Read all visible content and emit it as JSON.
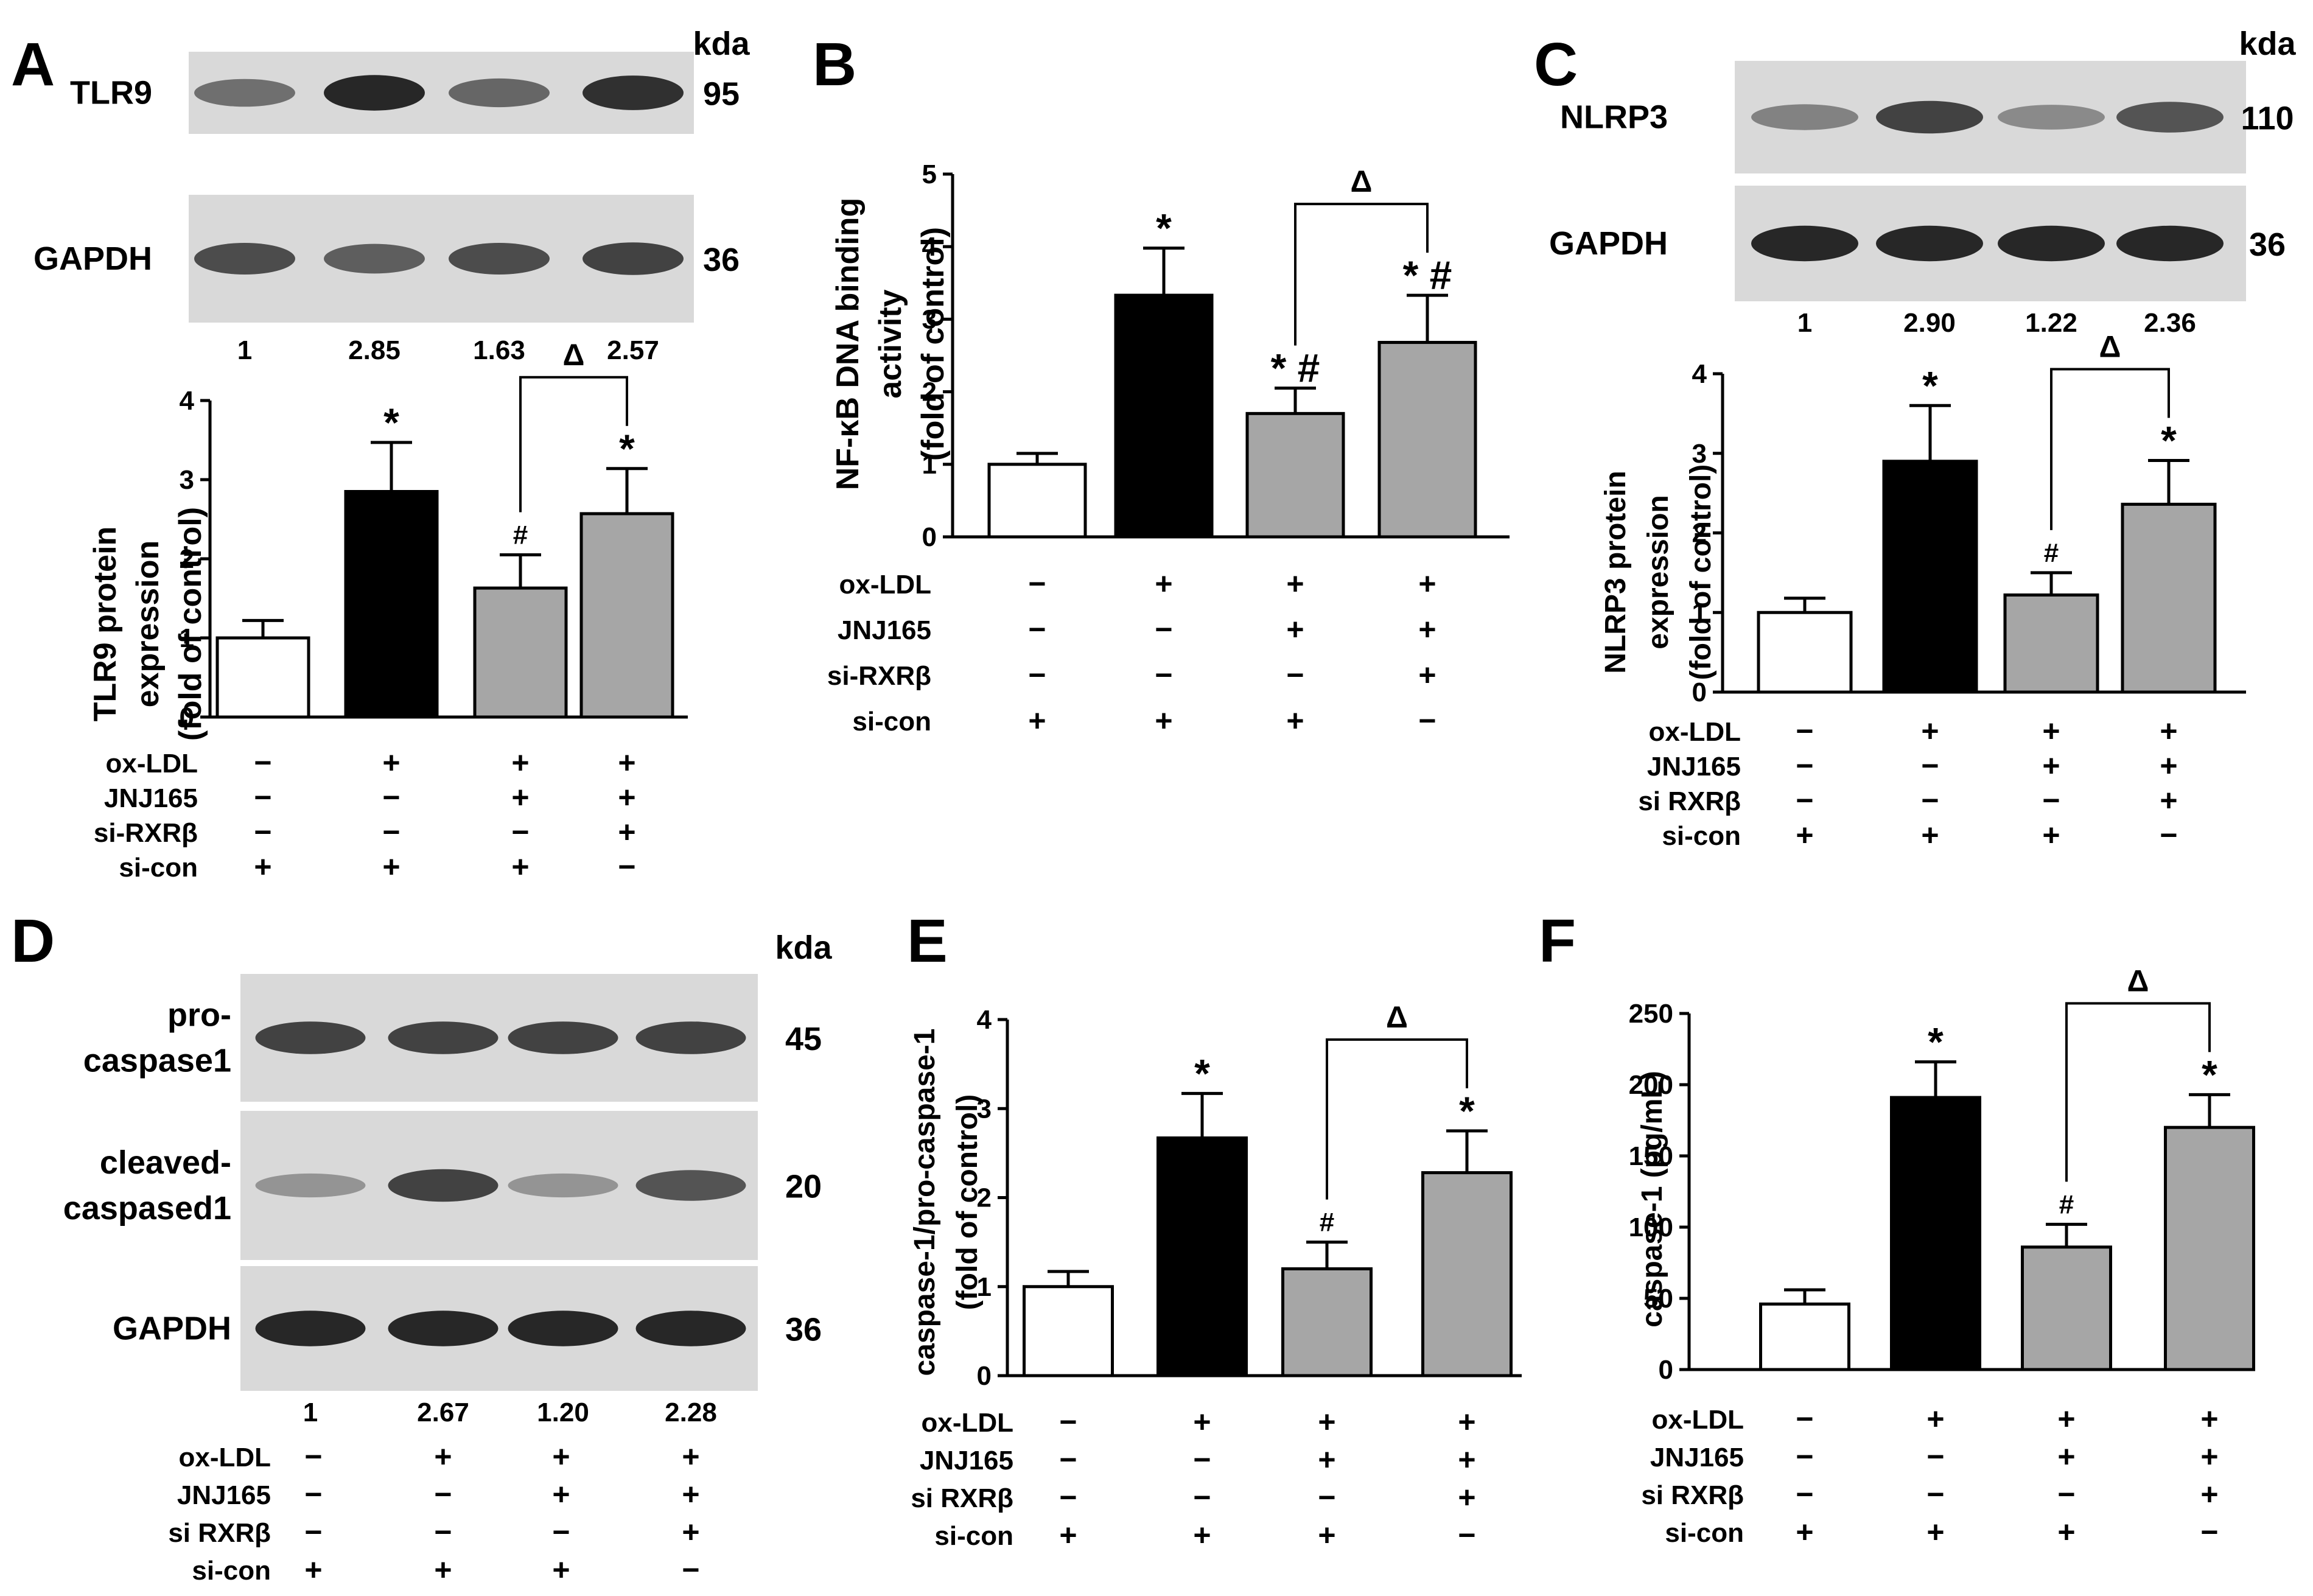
{
  "panels": [
    {
      "letter": "A",
      "kda_label": "kda",
      "blots": [
        {
          "label_lines": [
            "TLR9"
          ],
          "kda": "95",
          "intensities": [
            0.55,
            0.95,
            0.6,
            0.9
          ]
        },
        {
          "label_lines": [
            "GAPDH"
          ],
          "kda": "36",
          "intensities": [
            0.75,
            0.65,
            0.75,
            0.8
          ]
        }
      ],
      "densitometry": [
        "1",
        "2.85",
        "1.63",
        "2.57"
      ]
    },
    {
      "letter": "B"
    },
    {
      "letter": "C",
      "kda_label": "kda",
      "blots": [
        {
          "label_lines": [
            "NLRP3"
          ],
          "kda": "110",
          "intensities": [
            0.45,
            0.8,
            0.4,
            0.7
          ]
        },
        {
          "label_lines": [
            "GAPDH"
          ],
          "kda": "36",
          "intensities": [
            0.95,
            0.95,
            0.95,
            0.95
          ]
        }
      ],
      "densitometry": [
        "1",
        "2.90",
        "1.22",
        "2.36"
      ]
    },
    {
      "letter": "D",
      "kda_label": "kda",
      "blots": [
        {
          "label_lines": [
            "pro-",
            "caspase1"
          ],
          "kda": "45",
          "intensities": [
            0.8,
            0.8,
            0.8,
            0.8
          ]
        },
        {
          "label_lines": [
            "cleaved-",
            "caspased1"
          ],
          "kda": "20",
          "intensities": [
            0.35,
            0.8,
            0.35,
            0.7
          ]
        },
        {
          "label_lines": [
            "GAPDH"
          ],
          "kda": "36",
          "intensities": [
            0.95,
            0.95,
            0.95,
            0.95
          ]
        }
      ],
      "densitometry": [
        "1",
        "2.67",
        "1.20",
        "2.28"
      ]
    },
    {
      "letter": "E"
    },
    {
      "letter": "F"
    }
  ],
  "chart_data": [
    {
      "panel": "A",
      "type": "bar",
      "ylabel_lines": [
        "TLR9 protein",
        "expression",
        "(fold of control)"
      ],
      "ylim": [
        0,
        4
      ],
      "yticks": [
        "0",
        "1",
        "2",
        "3",
        "4"
      ],
      "values": [
        1.0,
        2.85,
        1.63,
        2.57
      ],
      "errors": [
        0.22,
        0.62,
        0.42,
        0.57
      ],
      "colors": [
        "#ffffff",
        "#000000",
        "#a6a6a6",
        "#a6a6a6"
      ],
      "annotations": [
        "",
        "*",
        "#",
        "*"
      ],
      "bracket": {
        "from": 2,
        "to": 3,
        "symbol": "Δ"
      },
      "conditions": [
        {
          "label": "ox-LDL",
          "signs": [
            "−",
            "+",
            "+",
            "+"
          ]
        },
        {
          "label": "JNJ165",
          "signs": [
            "−",
            "−",
            "+",
            "+"
          ]
        },
        {
          "label": "si-RXRβ",
          "signs": [
            "−",
            "−",
            "−",
            "+"
          ]
        },
        {
          "label": "si-con",
          "signs": [
            "+",
            "+",
            "+",
            "−"
          ]
        }
      ]
    },
    {
      "panel": "B",
      "type": "bar",
      "ylabel_lines": [
        "NF-κB DNA binding",
        "activity",
        "(fold of control)"
      ],
      "ylim": [
        0,
        5
      ],
      "yticks": [
        "0",
        "1",
        "2",
        "3",
        "4",
        "5"
      ],
      "values": [
        1.0,
        3.33,
        1.7,
        2.68
      ],
      "errors": [
        0.15,
        0.65,
        0.35,
        0.65
      ],
      "colors": [
        "#ffffff",
        "#000000",
        "#a6a6a6",
        "#a6a6a6"
      ],
      "annotations": [
        "",
        "*",
        "* #",
        "* #"
      ],
      "bracket": {
        "from": 2,
        "to": 3,
        "symbol": "Δ"
      },
      "conditions": [
        {
          "label": "ox-LDL",
          "signs": [
            "−",
            "+",
            "+",
            "+"
          ]
        },
        {
          "label": "JNJ165",
          "signs": [
            "−",
            "−",
            "+",
            "+"
          ]
        },
        {
          "label": "si-RXRβ",
          "signs": [
            "−",
            "−",
            "−",
            "+"
          ]
        },
        {
          "label": "si-con",
          "signs": [
            "+",
            "+",
            "+",
            "−"
          ]
        }
      ]
    },
    {
      "panel": "C",
      "type": "bar",
      "ylabel_lines": [
        "NLRP3 protein",
        "expression",
        "(fold of control)"
      ],
      "ylim": [
        0,
        4
      ],
      "yticks": [
        "0",
        "1",
        "2",
        "3",
        "4"
      ],
      "values": [
        1.0,
        2.9,
        1.22,
        2.36
      ],
      "errors": [
        0.18,
        0.7,
        0.28,
        0.55
      ],
      "colors": [
        "#ffffff",
        "#000000",
        "#a6a6a6",
        "#a6a6a6"
      ],
      "annotations": [
        "",
        "*",
        "#",
        "*"
      ],
      "bracket": {
        "from": 2,
        "to": 3,
        "symbol": "Δ"
      },
      "conditions": [
        {
          "label": "ox-LDL",
          "signs": [
            "−",
            "+",
            "+",
            "+"
          ]
        },
        {
          "label": "JNJ165",
          "signs": [
            "−",
            "−",
            "+",
            "+"
          ]
        },
        {
          "label": "si RXRβ",
          "signs": [
            "−",
            "−",
            "−",
            "+"
          ]
        },
        {
          "label": "si-con",
          "signs": [
            "+",
            "+",
            "+",
            "−"
          ]
        }
      ]
    },
    {
      "panel": "D",
      "type": "table",
      "conditions": [
        {
          "label": "ox-LDL",
          "signs": [
            "−",
            "+",
            "+",
            "+"
          ]
        },
        {
          "label": "JNJ165",
          "signs": [
            "−",
            "−",
            "+",
            "+"
          ]
        },
        {
          "label": "si RXRβ",
          "signs": [
            "−",
            "−",
            "−",
            "+"
          ]
        },
        {
          "label": "si-con",
          "signs": [
            "+",
            "+",
            "+",
            "−"
          ]
        }
      ]
    },
    {
      "panel": "E",
      "type": "bar",
      "ylabel_lines": [
        "caspase-1/pro-caspase-1",
        "(fold of control)"
      ],
      "ylim": [
        0,
        4
      ],
      "yticks": [
        "0",
        "1",
        "2",
        "3",
        "4"
      ],
      "values": [
        1.0,
        2.67,
        1.2,
        2.28
      ],
      "errors": [
        0.17,
        0.5,
        0.3,
        0.47
      ],
      "colors": [
        "#ffffff",
        "#000000",
        "#a6a6a6",
        "#a6a6a6"
      ],
      "annotations": [
        "",
        "*",
        "#",
        "*"
      ],
      "bracket": {
        "from": 2,
        "to": 3,
        "symbol": "Δ"
      },
      "conditions": [
        {
          "label": "ox-LDL",
          "signs": [
            "−",
            "+",
            "+",
            "+"
          ]
        },
        {
          "label": "JNJ165",
          "signs": [
            "−",
            "−",
            "+",
            "+"
          ]
        },
        {
          "label": "si RXRβ",
          "signs": [
            "−",
            "−",
            "−",
            "+"
          ]
        },
        {
          "label": "si-con",
          "signs": [
            "+",
            "+",
            "+",
            "−"
          ]
        }
      ]
    },
    {
      "panel": "F",
      "type": "bar",
      "ylabel_lines": [
        "caspase-1 (pg/mL)"
      ],
      "ylim": [
        0,
        250
      ],
      "yticks": [
        "0",
        "50",
        "100",
        "150",
        "200",
        "250"
      ],
      "values": [
        46,
        191,
        86,
        170
      ],
      "errors": [
        10,
        25,
        16,
        23
      ],
      "colors": [
        "#ffffff",
        "#000000",
        "#a6a6a6",
        "#a6a6a6"
      ],
      "annotations": [
        "",
        "*",
        "#",
        "*"
      ],
      "bracket": {
        "from": 2,
        "to": 3,
        "symbol": "Δ"
      },
      "conditions": [
        {
          "label": "ox-LDL",
          "signs": [
            "−",
            "+",
            "+",
            "+"
          ]
        },
        {
          "label": "JNJ165",
          "signs": [
            "−",
            "−",
            "+",
            "+"
          ]
        },
        {
          "label": "si RXRβ",
          "signs": [
            "−",
            "−",
            "−",
            "+"
          ]
        },
        {
          "label": "si-con",
          "signs": [
            "+",
            "+",
            "+",
            "−"
          ]
        }
      ]
    }
  ]
}
